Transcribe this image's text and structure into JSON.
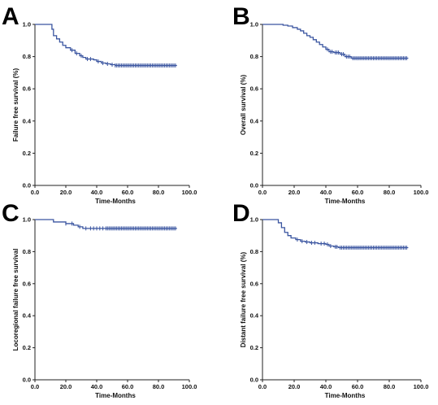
{
  "colors": {
    "curve": "#3a55a0",
    "axis": "#222222",
    "text": "#111111"
  },
  "chart_data": [
    {
      "panel": "A",
      "type": "line",
      "step": true,
      "xlabel": "Time-Months",
      "ylabel": "Failure free survival (%)",
      "xlim": [
        0,
        100
      ],
      "ylim": [
        0,
        1
      ],
      "xticks": [
        "0.0",
        "20.0",
        "40.0",
        "60.0",
        "80.0",
        "100.0"
      ],
      "yticks": [
        "0.0",
        "0.2",
        "0.4",
        "0.6",
        "0.8",
        "1.0"
      ],
      "curve": [
        [
          0,
          1.0
        ],
        [
          9,
          1.0
        ],
        [
          11,
          0.97
        ],
        [
          12,
          0.93
        ],
        [
          14,
          0.91
        ],
        [
          16,
          0.89
        ],
        [
          18,
          0.87
        ],
        [
          20,
          0.855
        ],
        [
          23,
          0.84
        ],
        [
          26,
          0.82
        ],
        [
          29,
          0.805
        ],
        [
          31,
          0.795
        ],
        [
          33,
          0.785
        ],
        [
          38,
          0.78
        ],
        [
          40,
          0.77
        ],
        [
          43,
          0.76
        ],
        [
          46,
          0.755
        ],
        [
          49,
          0.75
        ],
        [
          52,
          0.745
        ],
        [
          92,
          0.745
        ]
      ],
      "censor_x": [
        24,
        27,
        30,
        34,
        36,
        41,
        44,
        47,
        50,
        52,
        53,
        54,
        55,
        56,
        57,
        58,
        59,
        60,
        61,
        62,
        63,
        64,
        65,
        66,
        67,
        68,
        69,
        70,
        71,
        72,
        73,
        74,
        75,
        76,
        77,
        78,
        79,
        80,
        81,
        82,
        83,
        84,
        85,
        86,
        87,
        88,
        89,
        90,
        91
      ]
    },
    {
      "panel": "B",
      "type": "line",
      "step": true,
      "xlabel": "Time-Months",
      "ylabel": "Overall survival (%)",
      "xlim": [
        0,
        100
      ],
      "ylim": [
        0,
        1
      ],
      "xticks": [
        "0.0",
        "20.0",
        "40.0",
        "60.0",
        "80.0",
        "100.0"
      ],
      "yticks": [
        "0.0",
        "0.2",
        "0.4",
        "0.6",
        "0.8",
        "1.0"
      ],
      "curve": [
        [
          0,
          1.0
        ],
        [
          10,
          1.0
        ],
        [
          13,
          0.995
        ],
        [
          16,
          0.99
        ],
        [
          19,
          0.98
        ],
        [
          22,
          0.97
        ],
        [
          24,
          0.96
        ],
        [
          26,
          0.945
        ],
        [
          28,
          0.93
        ],
        [
          30,
          0.92
        ],
        [
          32,
          0.905
        ],
        [
          34,
          0.89
        ],
        [
          36,
          0.875
        ],
        [
          38,
          0.86
        ],
        [
          40,
          0.845
        ],
        [
          42,
          0.83
        ],
        [
          45,
          0.825
        ],
        [
          49,
          0.815
        ],
        [
          52,
          0.8
        ],
        [
          56,
          0.79
        ],
        [
          92,
          0.79
        ]
      ],
      "censor_x": [
        41,
        43,
        44,
        46,
        47,
        48,
        50,
        51,
        53,
        54,
        55,
        57,
        58,
        59,
        60,
        61,
        62,
        63,
        64,
        65,
        66,
        67,
        68,
        69,
        70,
        71,
        72,
        73,
        74,
        75,
        76,
        77,
        78,
        79,
        80,
        81,
        82,
        83,
        84,
        85,
        86,
        87,
        88,
        89,
        90,
        91
      ]
    },
    {
      "panel": "C",
      "type": "line",
      "step": true,
      "xlabel": "Time-Months",
      "ylabel": "Locoregional failure free survival",
      "xlim": [
        0,
        100
      ],
      "ylim": [
        0,
        1
      ],
      "xticks": [
        "0.0",
        "20.0",
        "40.0",
        "60.0",
        "80.0",
        "100.0"
      ],
      "yticks": [
        "0.0",
        "0.2",
        "0.4",
        "0.6",
        "0.8",
        "1.0"
      ],
      "curve": [
        [
          0,
          1.0
        ],
        [
          10,
          1.0
        ],
        [
          12,
          0.985
        ],
        [
          20,
          0.975
        ],
        [
          25,
          0.965
        ],
        [
          28,
          0.955
        ],
        [
          31,
          0.945
        ],
        [
          92,
          0.945
        ]
      ],
      "censor_x": [
        20,
        24,
        29,
        33,
        36,
        38,
        40,
        42,
        44,
        46,
        47,
        48,
        49,
        50,
        51,
        52,
        53,
        54,
        55,
        56,
        57,
        58,
        59,
        60,
        61,
        62,
        63,
        64,
        65,
        66,
        67,
        68,
        69,
        70,
        71,
        72,
        73,
        74,
        75,
        76,
        77,
        78,
        79,
        80,
        81,
        82,
        83,
        84,
        85,
        86,
        87,
        88,
        89,
        90,
        91
      ]
    },
    {
      "panel": "D",
      "type": "line",
      "step": true,
      "xlabel": "Time-Months",
      "ylabel": "Distant failure free survival (%)",
      "xlim": [
        0,
        100
      ],
      "ylim": [
        0,
        1
      ],
      "xticks": [
        "0.0",
        "20.0",
        "40.0",
        "60.0",
        "80.0",
        "100.0"
      ],
      "yticks": [
        "0.0",
        "0.2",
        "0.4",
        "0.6",
        "0.8",
        "1.0"
      ],
      "curve": [
        [
          0,
          1.0
        ],
        [
          8,
          1.0
        ],
        [
          10,
          0.98
        ],
        [
          12,
          0.95
        ],
        [
          14,
          0.92
        ],
        [
          16,
          0.9
        ],
        [
          18,
          0.885
        ],
        [
          21,
          0.875
        ],
        [
          24,
          0.865
        ],
        [
          27,
          0.86
        ],
        [
          30,
          0.855
        ],
        [
          35,
          0.85
        ],
        [
          40,
          0.845
        ],
        [
          42,
          0.835
        ],
        [
          45,
          0.83
        ],
        [
          48,
          0.825
        ],
        [
          92,
          0.825
        ]
      ],
      "censor_x": [
        22,
        25,
        28,
        31,
        33,
        37,
        39,
        41,
        43,
        46,
        47,
        49,
        50,
        51,
        52,
        53,
        54,
        55,
        56,
        57,
        58,
        59,
        60,
        61,
        62,
        63,
        64,
        65,
        66,
        67,
        68,
        69,
        70,
        71,
        72,
        73,
        74,
        75,
        76,
        77,
        78,
        79,
        80,
        81,
        82,
        83,
        84,
        85,
        86,
        87,
        88,
        89,
        90,
        91
      ]
    }
  ]
}
